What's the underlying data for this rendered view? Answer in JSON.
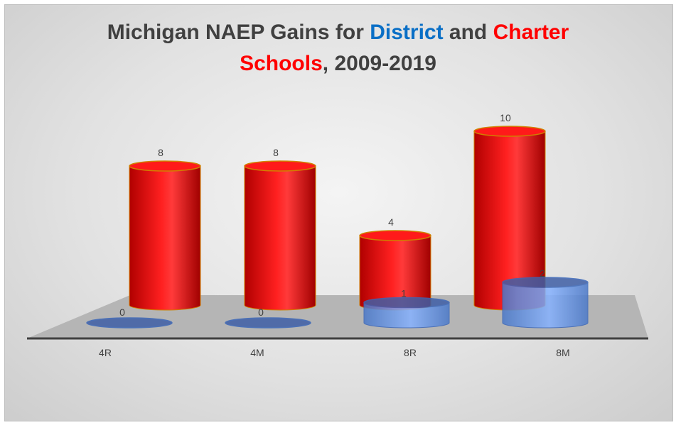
{
  "chart_data": {
    "type": "bar",
    "title": {
      "prefix": "Michigan NAEP Gains for ",
      "district_word": "District",
      "middle": " and ",
      "charter_word": "Charter",
      "line2_word": "Schools",
      "suffix": ", 2009-2019"
    },
    "categories": [
      "4R",
      "4M",
      "8R",
      "8M"
    ],
    "series": [
      {
        "name": "District",
        "values": [
          0,
          0,
          1,
          2
        ],
        "color": "#5b8fe6"
      },
      {
        "name": "Charter",
        "values": [
          8,
          8,
          4,
          10
        ],
        "color": "#ff0000"
      }
    ],
    "xlabel": "",
    "ylabel": "",
    "legend": "none",
    "grid": false,
    "style": "3d-cylinder"
  }
}
